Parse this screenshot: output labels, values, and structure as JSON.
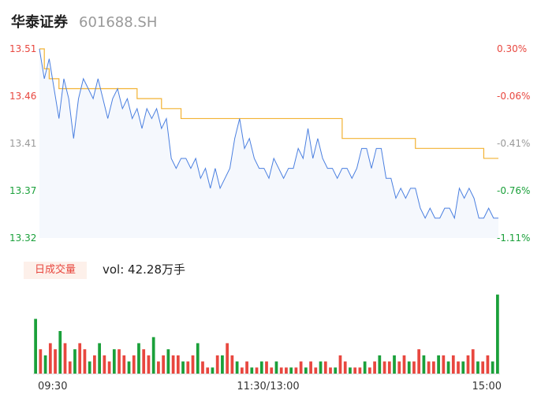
{
  "header": {
    "name": "华泰证券",
    "code": "601688.SH"
  },
  "volume": {
    "badge": "日成交量",
    "label": "vol: 42.28万手"
  },
  "colors": {
    "up": "#e8473f",
    "down": "#1aa03a",
    "neutral": "#999999",
    "price_line": "#4a7fe0",
    "avg_line": "#f2b233",
    "area_fill": "#eef3fc"
  },
  "chart_data": [
    {
      "type": "line",
      "title": "",
      "y_left_ticks": [
        "13.51",
        "13.46",
        "13.41",
        "13.37",
        "13.32"
      ],
      "y_right_ticks": [
        "0.30%",
        "-0.06%",
        "-0.41%",
        "-0.76%",
        "-1.11%"
      ],
      "ylim": [
        13.32,
        13.51
      ],
      "x_ticks": [
        "09:30",
        "11:30/13:00",
        "15:00"
      ],
      "series": [
        {
          "values": [
            13.51,
            13.48,
            13.5,
            13.47,
            13.44,
            13.48,
            13.46,
            13.42,
            13.46,
            13.48,
            13.47,
            13.46,
            13.48,
            13.46,
            13.44,
            13.46,
            13.47,
            13.45,
            13.46,
            13.44,
            13.45,
            13.43,
            13.45,
            13.44,
            13.45,
            13.43,
            13.44,
            13.4,
            13.39,
            13.4,
            13.4,
            13.39,
            13.4,
            13.38,
            13.39,
            13.37,
            13.39,
            13.37,
            13.38,
            13.39,
            13.42,
            13.44,
            13.41,
            13.42,
            13.4,
            13.39,
            13.39,
            13.38,
            13.4,
            13.39,
            13.38,
            13.39,
            13.39,
            13.41,
            13.4,
            13.43,
            13.4,
            13.42,
            13.4,
            13.39,
            13.39,
            13.38,
            13.39,
            13.39,
            13.38,
            13.39,
            13.41,
            13.41,
            13.39,
            13.41,
            13.41,
            13.38,
            13.38,
            13.36,
            13.37,
            13.36,
            13.37,
            13.37,
            13.35,
            13.34,
            13.35,
            13.34,
            13.34,
            13.35,
            13.35,
            13.34,
            13.37,
            13.36,
            13.37,
            13.36,
            13.34,
            13.34,
            13.35,
            13.34,
            13.34
          ]
        },
        {
          "values": [
            13.51,
            13.49,
            13.48,
            13.48,
            13.47,
            13.47,
            13.47,
            13.47,
            13.47,
            13.47,
            13.47,
            13.47,
            13.47,
            13.47,
            13.47,
            13.47,
            13.47,
            13.47,
            13.47,
            13.47,
            13.46,
            13.46,
            13.46,
            13.46,
            13.46,
            13.45,
            13.45,
            13.45,
            13.45,
            13.44,
            13.44,
            13.44,
            13.44,
            13.44,
            13.44,
            13.44,
            13.44,
            13.44,
            13.44,
            13.44,
            13.44,
            13.44,
            13.44,
            13.44,
            13.44,
            13.44,
            13.44,
            13.44,
            13.44,
            13.44,
            13.44,
            13.44,
            13.44,
            13.44,
            13.44,
            13.44,
            13.44,
            13.44,
            13.44,
            13.44,
            13.44,
            13.44,
            13.42,
            13.42,
            13.42,
            13.42,
            13.42,
            13.42,
            13.42,
            13.42,
            13.42,
            13.42,
            13.42,
            13.42,
            13.42,
            13.42,
            13.42,
            13.41,
            13.41,
            13.41,
            13.41,
            13.41,
            13.41,
            13.41,
            13.41,
            13.41,
            13.41,
            13.41,
            13.41,
            13.41,
            13.41,
            13.4,
            13.4,
            13.4,
            13.4
          ]
        }
      ]
    },
    {
      "type": "bar",
      "title": "",
      "values": [
        9,
        4,
        3,
        5,
        4,
        7,
        5,
        2,
        4,
        5,
        4,
        2,
        3,
        5,
        3,
        2,
        4,
        4,
        3,
        2,
        3,
        5,
        4,
        3,
        6,
        2,
        3,
        4,
        3,
        3,
        2,
        2,
        3,
        5,
        2,
        1,
        1,
        3,
        3,
        5,
        3,
        2,
        1,
        2,
        1,
        1,
        2,
        2,
        1,
        2,
        1,
        1,
        1,
        1,
        2,
        1,
        2,
        1,
        2,
        2,
        1,
        1,
        3,
        2,
        1,
        1,
        1,
        2,
        1,
        2,
        3,
        2,
        2,
        3,
        2,
        3,
        2,
        2,
        4,
        3,
        2,
        2,
        3,
        3,
        2,
        3,
        2,
        2,
        3,
        4,
        2,
        2,
        3,
        2,
        13
      ],
      "up": [
        false,
        true,
        false,
        true,
        true,
        false,
        true,
        true,
        false,
        true,
        true,
        false,
        true,
        false,
        true,
        true,
        false,
        true,
        true,
        false,
        true,
        false,
        true,
        true,
        false,
        true,
        true,
        false,
        true,
        true,
        false,
        true,
        true,
        false,
        true,
        true,
        false,
        true,
        false,
        true,
        true,
        false,
        true,
        true,
        false,
        true,
        false,
        true,
        true,
        false,
        true,
        true,
        false,
        true,
        true,
        false,
        true,
        true,
        false,
        true,
        true,
        false,
        true,
        true,
        false,
        true,
        true,
        false,
        true,
        true,
        false,
        true,
        true,
        false,
        true,
        true,
        false,
        true,
        true,
        false,
        true,
        true,
        false,
        true,
        false,
        true,
        true,
        false,
        true,
        true,
        false,
        true,
        true,
        false,
        false
      ],
      "ylim": [
        0,
        14
      ]
    }
  ]
}
